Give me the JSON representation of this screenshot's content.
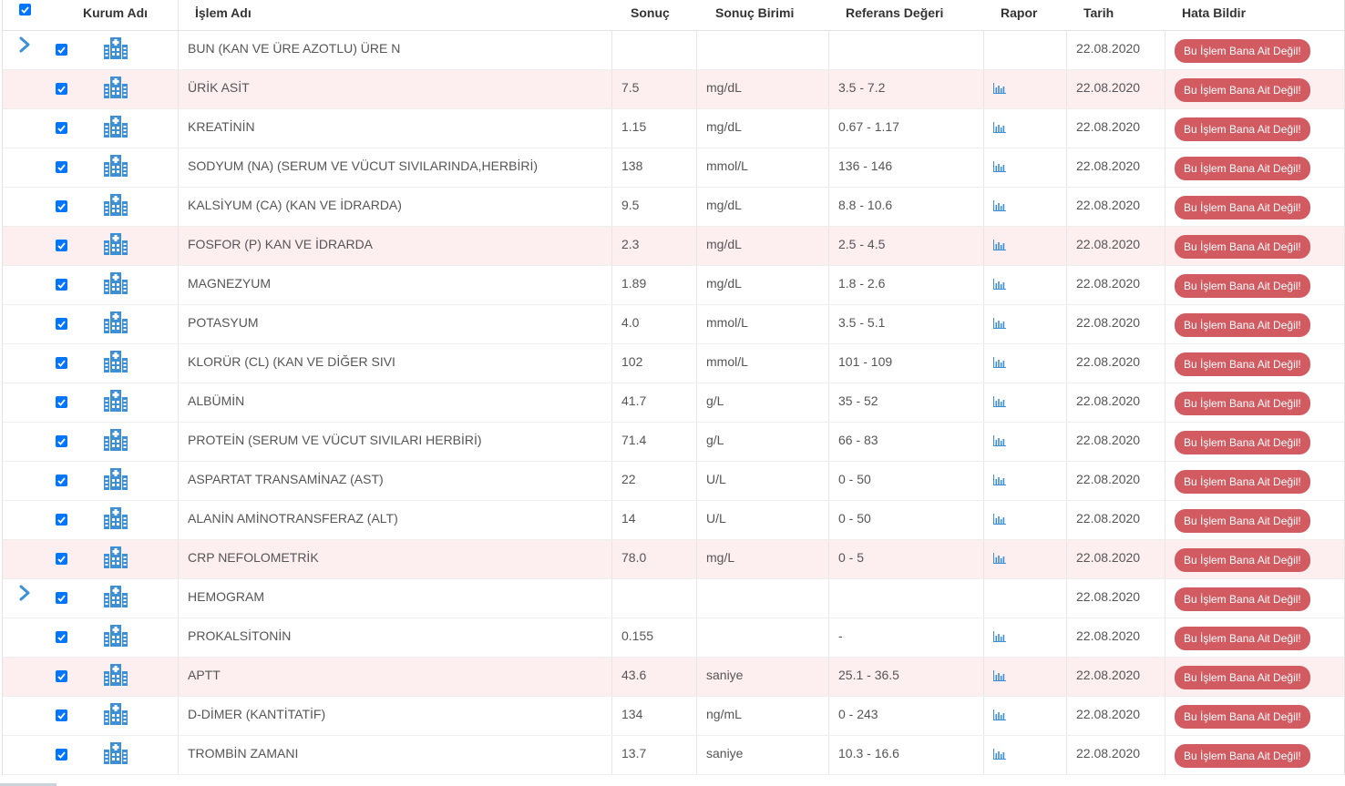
{
  "header": {
    "kurum": "Kurum Adı",
    "islem": "İşlem Adı",
    "sonuc": "Sonuç",
    "birim": "Sonuç Birimi",
    "referans": "Referans Değeri",
    "rapor": "Rapor",
    "tarih": "Tarih",
    "hata": "Hata Bildir"
  },
  "colors": {
    "checkbox": "#0075ff",
    "icon": "#3d8fd6",
    "button": "#d15b61",
    "abnormal_row": "#fdeef0"
  },
  "rows": [
    {
      "expand": true,
      "name": "BUN (KAN VE ÜRE AZOTLU) ÜRE N",
      "result": "",
      "unit": "",
      "ref": "",
      "chart": false,
      "date": "22.08.2020",
      "btn": "Bu İşlem Bana Ait Değil!",
      "abnormal": false
    },
    {
      "expand": false,
      "name": "ÜRİK ASİT",
      "result": "7.5",
      "unit": "mg/dL",
      "ref": "3.5 - 7.2",
      "chart": true,
      "date": "22.08.2020",
      "btn": "Bu İşlem Bana Ait Değil!",
      "abnormal": true
    },
    {
      "expand": false,
      "name": "KREATİNİN",
      "result": "1.15",
      "unit": "mg/dL",
      "ref": "0.67 - 1.17",
      "chart": true,
      "date": "22.08.2020",
      "btn": "Bu İşlem Bana Ait Değil!",
      "abnormal": false
    },
    {
      "expand": false,
      "name": "SODYUM (NA) (SERUM VE VÜCUT SIVILARINDA,HERBİRİ)",
      "result": "138",
      "unit": "mmol/L",
      "ref": "136 - 146",
      "chart": true,
      "date": "22.08.2020",
      "btn": "Bu İşlem Bana Ait Değil!",
      "abnormal": false
    },
    {
      "expand": false,
      "name": "KALSİYUM (CA) (KAN VE İDRARDA)",
      "result": "9.5",
      "unit": "mg/dL",
      "ref": "8.8 - 10.6",
      "chart": true,
      "date": "22.08.2020",
      "btn": "Bu İşlem Bana Ait Değil!",
      "abnormal": false
    },
    {
      "expand": false,
      "name": "FOSFOR (P) KAN VE İDRARDA",
      "result": "2.3",
      "unit": "mg/dL",
      "ref": "2.5 - 4.5",
      "chart": true,
      "date": "22.08.2020",
      "btn": "Bu İşlem Bana Ait Değil!",
      "abnormal": true
    },
    {
      "expand": false,
      "name": "MAGNEZYUM",
      "result": "1.89",
      "unit": "mg/dL",
      "ref": "1.8 - 2.6",
      "chart": true,
      "date": "22.08.2020",
      "btn": "Bu İşlem Bana Ait Değil!",
      "abnormal": false
    },
    {
      "expand": false,
      "name": "POTASYUM",
      "result": "4.0",
      "unit": "mmol/L",
      "ref": "3.5 - 5.1",
      "chart": true,
      "date": "22.08.2020",
      "btn": "Bu İşlem Bana Ait Değil!",
      "abnormal": false
    },
    {
      "expand": false,
      "name": "KLORÜR (CL) (KAN VE DİĞER SIVI",
      "result": "102",
      "unit": "mmol/L",
      "ref": "101 - 109",
      "chart": true,
      "date": "22.08.2020",
      "btn": "Bu İşlem Bana Ait Değil!",
      "abnormal": false
    },
    {
      "expand": false,
      "name": "ALBÜMİN",
      "result": "41.7",
      "unit": "g/L",
      "ref": "35 - 52",
      "chart": true,
      "date": "22.08.2020",
      "btn": "Bu İşlem Bana Ait Değil!",
      "abnormal": false
    },
    {
      "expand": false,
      "name": "PROTEİN (SERUM VE VÜCUT SIVILARI HERBİRİ)",
      "result": "71.4",
      "unit": "g/L",
      "ref": "66 - 83",
      "chart": true,
      "date": "22.08.2020",
      "btn": "Bu İşlem Bana Ait Değil!",
      "abnormal": false
    },
    {
      "expand": false,
      "name": "ASPARTAT TRANSAMİNAZ (AST)",
      "result": "22",
      "unit": "U/L",
      "ref": "0 - 50",
      "chart": true,
      "date": "22.08.2020",
      "btn": "Bu İşlem Bana Ait Değil!",
      "abnormal": false
    },
    {
      "expand": false,
      "name": "ALANİN AMİNOTRANSFERAZ (ALT)",
      "result": "14",
      "unit": "U/L",
      "ref": "0 - 50",
      "chart": true,
      "date": "22.08.2020",
      "btn": "Bu İşlem Bana Ait Değil!",
      "abnormal": false
    },
    {
      "expand": false,
      "name": "CRP NEFOLOMETRİK",
      "result": "78.0",
      "unit": "mg/L",
      "ref": "0 - 5",
      "chart": true,
      "date": "22.08.2020",
      "btn": "Bu İşlem Bana Ait Değil!",
      "abnormal": true
    },
    {
      "expand": true,
      "name": "HEMOGRAM",
      "result": "",
      "unit": "",
      "ref": "",
      "chart": false,
      "date": "22.08.2020",
      "btn": "Bu İşlem Bana Ait Değil!",
      "abnormal": false
    },
    {
      "expand": false,
      "name": "PROKALSİTONİN",
      "result": "0.155",
      "unit": "",
      "ref": "-",
      "chart": true,
      "date": "22.08.2020",
      "btn": "Bu İşlem Bana Ait Değil!",
      "abnormal": false
    },
    {
      "expand": false,
      "name": "APTT",
      "result": "43.6",
      "unit": "saniye",
      "ref": "25.1 - 36.5",
      "chart": true,
      "date": "22.08.2020",
      "btn": "Bu İşlem Bana Ait Değil!",
      "abnormal": true
    },
    {
      "expand": false,
      "name": "D-DİMER (KANTİTATİF)",
      "result": "134",
      "unit": "ng/mL",
      "ref": "0 - 243",
      "chart": true,
      "date": "22.08.2020",
      "btn": "Bu İşlem Bana Ait Değil!",
      "abnormal": false
    },
    {
      "expand": false,
      "name": "TROMBİN ZAMANI",
      "result": "13.7",
      "unit": "saniye",
      "ref": "10.3 - 16.6",
      "chart": true,
      "date": "22.08.2020",
      "btn": "Bu İşlem Bana Ait Değil!",
      "abnormal": false
    }
  ]
}
